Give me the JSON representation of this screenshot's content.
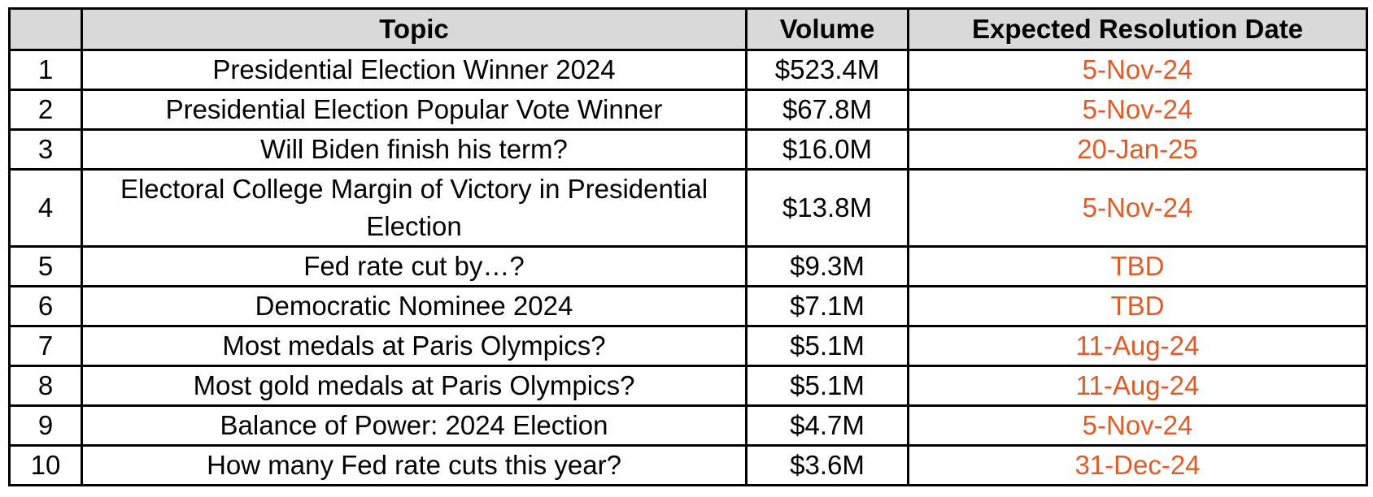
{
  "table": {
    "headers": {
      "rank": "",
      "topic": "Topic",
      "volume": "Volume",
      "date": "Expected Resolution Date"
    },
    "date_color": "#e25b27",
    "header_bg": "#d9d9d9",
    "rows": [
      {
        "rank": "1",
        "topic": "Presidential Election Winner 2024",
        "volume": "$523.4M",
        "date": "5-Nov-24"
      },
      {
        "rank": "2",
        "topic": "Presidential Election Popular Vote Winner",
        "volume": "$67.8M",
        "date": "5-Nov-24"
      },
      {
        "rank": "3",
        "topic": "Will Biden finish his term?",
        "volume": "$16.0M",
        "date": "20-Jan-25"
      },
      {
        "rank": "4",
        "topic": "Electoral College Margin of Victory in Presidential Election",
        "volume": "$13.8M",
        "date": "5-Nov-24"
      },
      {
        "rank": "5",
        "topic": "Fed rate cut by…?",
        "volume": "$9.3M",
        "date": "TBD"
      },
      {
        "rank": "6",
        "topic": "Democratic Nominee 2024",
        "volume": "$7.1M",
        "date": "TBD"
      },
      {
        "rank": "7",
        "topic": "Most medals at Paris Olympics?",
        "volume": "$5.1M",
        "date": "11-Aug-24"
      },
      {
        "rank": "8",
        "topic": "Most gold medals at Paris Olympics?",
        "volume": "$5.1M",
        "date": "11-Aug-24"
      },
      {
        "rank": "9",
        "topic": "Balance of Power: 2024 Election",
        "volume": "$4.7M",
        "date": "5-Nov-24"
      },
      {
        "rank": "10",
        "topic": "How many Fed rate cuts this year?",
        "volume": "$3.6M",
        "date": "31-Dec-24"
      }
    ]
  }
}
